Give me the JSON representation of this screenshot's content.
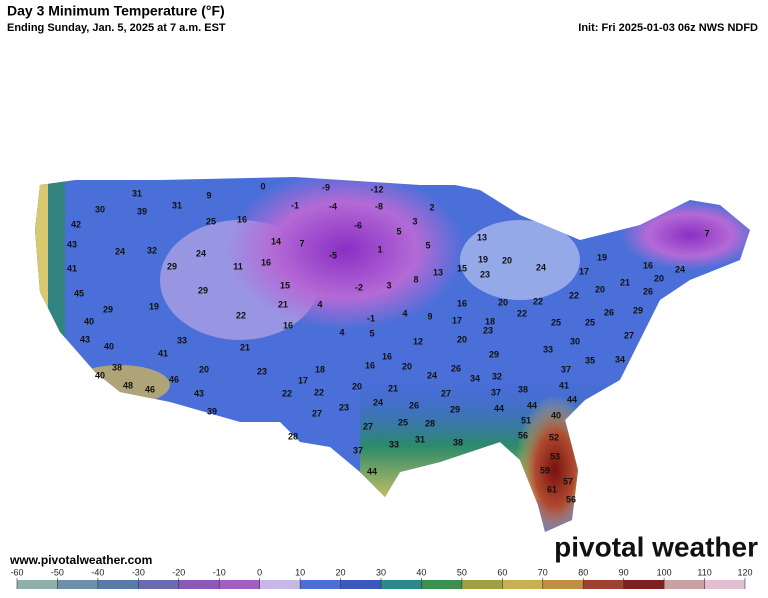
{
  "header": {
    "title": "Day 3 Minimum Temperature (°F)",
    "subtitle": "Ending Sunday, Jan. 5, 2025 at 7 a.m. EST",
    "init": "Init: Fri 2025-01-03 06z NWS NDFD"
  },
  "map": {
    "labels": [
      30,
      31,
      39,
      31,
      9,
      0,
      -9,
      -12,
      -8,
      -4,
      -1,
      2,
      3,
      42,
      25,
      16,
      -6,
      43,
      24,
      32,
      24,
      14,
      7,
      5,
      5,
      13,
      1,
      -5,
      41,
      29,
      11,
      16,
      15,
      19,
      20,
      24,
      17,
      19,
      16,
      24,
      20,
      7,
      8,
      13,
      15,
      23,
      45,
      29,
      19,
      29,
      22,
      21,
      4,
      -2,
      3,
      16,
      20,
      22,
      22,
      20,
      21,
      26,
      40,
      16,
      -1,
      4,
      9,
      17,
      18,
      22,
      25,
      25,
      26,
      29,
      23,
      27,
      43,
      40,
      33,
      21,
      4,
      5,
      12,
      20,
      29,
      33,
      30,
      35,
      34,
      41,
      38,
      20,
      23,
      18,
      16,
      16,
      20,
      26,
      32,
      37,
      40,
      48,
      46,
      46,
      17,
      20,
      21,
      24,
      34,
      38,
      41,
      43,
      22,
      22,
      24,
      27,
      37,
      44,
      39,
      27,
      23,
      26,
      29,
      44,
      44,
      40,
      28,
      27,
      25,
      28,
      51,
      56,
      52,
      37,
      33,
      31,
      38,
      53,
      44,
      59,
      57,
      61,
      56
    ]
  },
  "colorbar": {
    "lim": [
      -60,
      120
    ],
    "ticks": [
      -60,
      -50,
      -40,
      -30,
      -20,
      -10,
      0,
      10,
      20,
      30,
      40,
      50,
      60,
      70,
      80,
      90,
      100,
      110,
      120
    ]
  },
  "footer": {
    "website": "www.pivotalweather.com",
    "logo": "pivotal weather"
  }
}
